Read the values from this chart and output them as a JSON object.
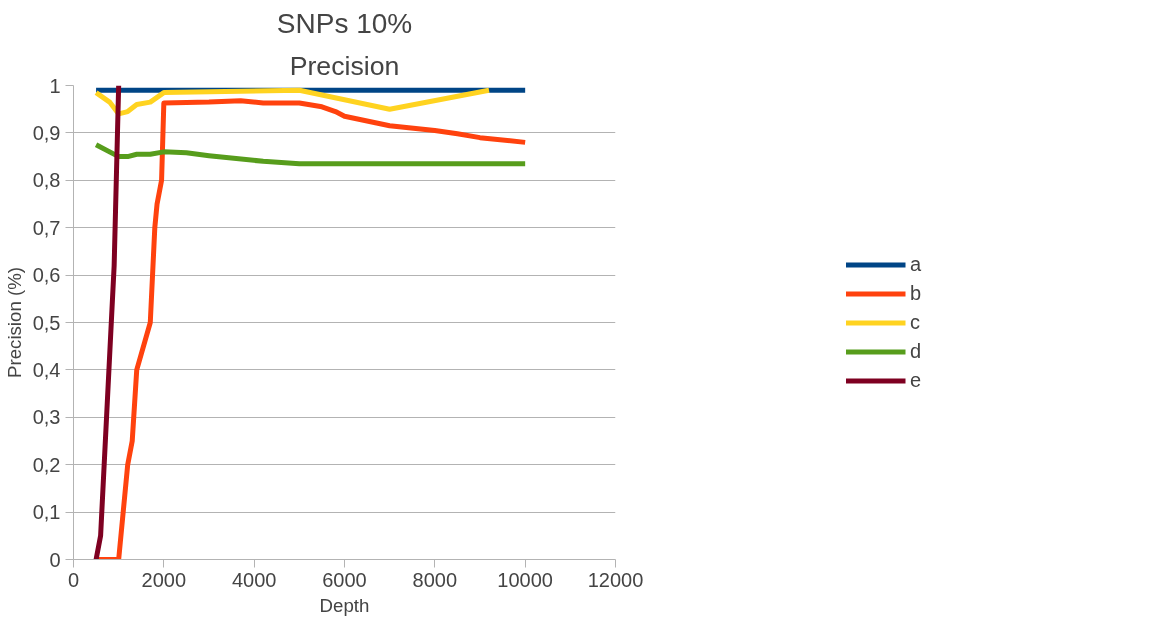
{
  "chart_data": {
    "type": "line",
    "title": "SNPs 10%",
    "subtitle": "Precision",
    "xlabel": "Depth",
    "ylabel": "Precision (%)",
    "xlim": [
      0,
      12000
    ],
    "xticks": [
      0,
      2000,
      4000,
      6000,
      8000,
      10000,
      12000
    ],
    "ylim": [
      0,
      1
    ],
    "yticks": [
      0,
      {
        "value": 0.1,
        "label": "0,1"
      },
      {
        "value": 0.2,
        "label": "0,2"
      },
      {
        "value": 0.3,
        "label": "0,3"
      },
      {
        "value": 0.4,
        "label": "0,4"
      },
      {
        "value": 0.5,
        "label": "0,5"
      },
      {
        "value": 0.6,
        "label": "0,6"
      },
      {
        "value": 0.7,
        "label": "0,7"
      },
      {
        "value": 0.8,
        "label": "0,8"
      },
      {
        "value": 0.9,
        "label": "0,9"
      },
      1
    ],
    "grid": "y",
    "legend": "right",
    "marker": "none",
    "line_style": "solid",
    "series": [
      {
        "name": "a",
        "color": "#004586",
        "x": [
          500,
          10000
        ],
        "values": [
          0.99,
          0.99
        ]
      },
      {
        "name": "b",
        "color": "#ff420e",
        "x": [
          500,
          1000,
          1200,
          1300,
          1400,
          1700,
          1800,
          1850,
          1950,
          2000,
          3000,
          3700,
          4200,
          5000,
          5500,
          5800,
          6000,
          6500,
          7000,
          8000,
          8500,
          9000,
          10000
        ],
        "values": [
          0,
          0,
          0.2,
          0.25,
          0.4,
          0.5,
          0.7,
          0.75,
          0.8,
          0.963,
          0.965,
          0.968,
          0.963,
          0.963,
          0.955,
          0.945,
          0.935,
          0.925,
          0.915,
          0.905,
          0.898,
          0.89,
          0.88
        ]
      },
      {
        "name": "c",
        "color": "#ffd320",
        "x": [
          500,
          800,
          1000,
          1200,
          1400,
          1700,
          2000,
          5000,
          7000,
          9200
        ],
        "values": [
          0.985,
          0.965,
          0.94,
          0.945,
          0.96,
          0.965,
          0.985,
          0.99,
          0.95,
          0.99
        ]
      },
      {
        "name": "d",
        "color": "#579d1c",
        "x": [
          500,
          1000,
          1200,
          1400,
          1700,
          2000,
          2500,
          3000,
          4200,
          5000,
          10000
        ],
        "values": [
          0.875,
          0.85,
          0.85,
          0.855,
          0.855,
          0.86,
          0.858,
          0.852,
          0.84,
          0.835,
          0.835
        ]
      },
      {
        "name": "e",
        "color": "#7e0021",
        "x": [
          500,
          600,
          900,
          1000
        ],
        "values": [
          0,
          0.05,
          0.62,
          1
        ]
      }
    ]
  }
}
